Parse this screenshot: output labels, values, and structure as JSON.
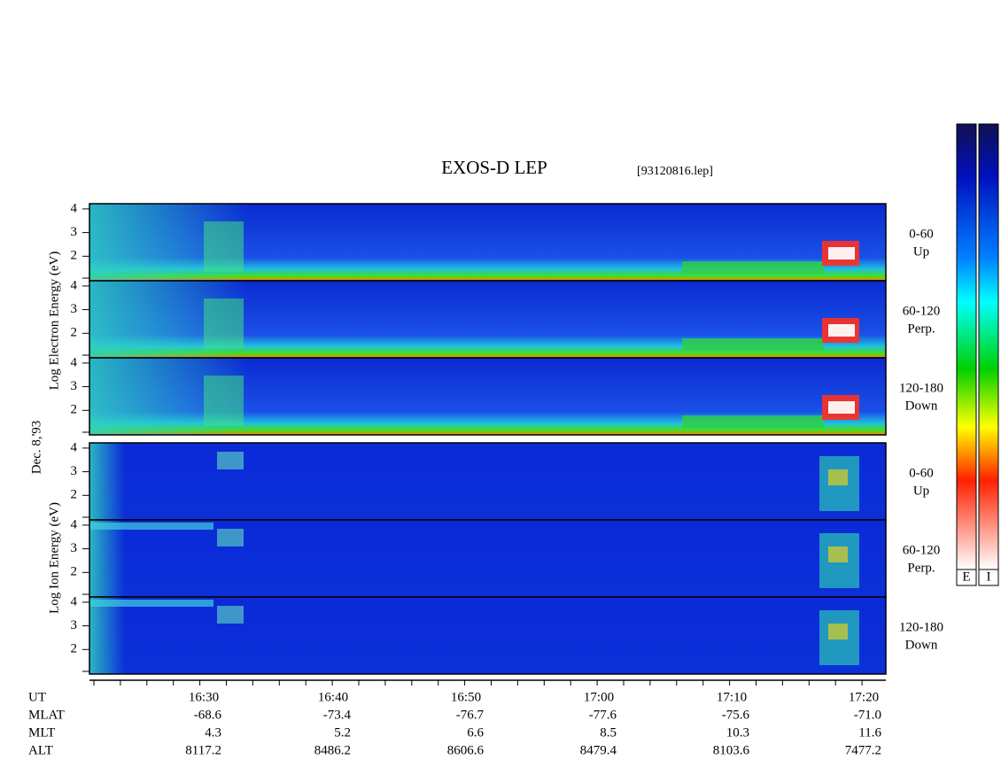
{
  "title": "EXOS-D LEP",
  "file": "[93120816.lep]",
  "date": "Dec. 8,'93",
  "electron_axis_label": "Log Electron Energy (eV)",
  "ion_axis_label": "Log Ion Energy (eV)",
  "panels": [
    {
      "group": "electron",
      "label": [
        "0-60",
        "Up"
      ],
      "yticks": [
        2,
        3,
        4
      ]
    },
    {
      "group": "electron",
      "label": [
        "60-120",
        "Perp."
      ],
      "yticks": [
        2,
        3,
        4
      ]
    },
    {
      "group": "electron",
      "label": [
        "120-180",
        "Down"
      ],
      "yticks": [
        2,
        3,
        4
      ]
    },
    {
      "group": "ion",
      "label": [
        "0-60",
        "Up"
      ],
      "yticks": [
        2,
        3,
        4
      ]
    },
    {
      "group": "ion",
      "label": [
        "60-120",
        "Perp."
      ],
      "yticks": [
        2,
        3,
        4
      ]
    },
    {
      "group": "ion",
      "label": [
        "120-180",
        "Down"
      ],
      "yticks": [
        2,
        3,
        4
      ]
    }
  ],
  "time_axis": [
    {
      "name": "UT",
      "values": [
        "16:30",
        "16:40",
        "16:50",
        "17:00",
        "17:10",
        "17:20"
      ]
    },
    {
      "name": "MLAT",
      "values": [
        "-68.6",
        "-73.4",
        "-76.7",
        "-77.6",
        "-75.6",
        "-71.0"
      ]
    },
    {
      "name": "MLT",
      "values": [
        "4.3",
        "5.2",
        "6.6",
        "8.5",
        "10.3",
        "11.6"
      ]
    },
    {
      "name": "ALT",
      "values": [
        "8117.2",
        "8486.2",
        "8606.6",
        "8479.4",
        "8103.6",
        "7477.2"
      ]
    }
  ],
  "colorbar_labels": [
    "E",
    "I"
  ]
}
